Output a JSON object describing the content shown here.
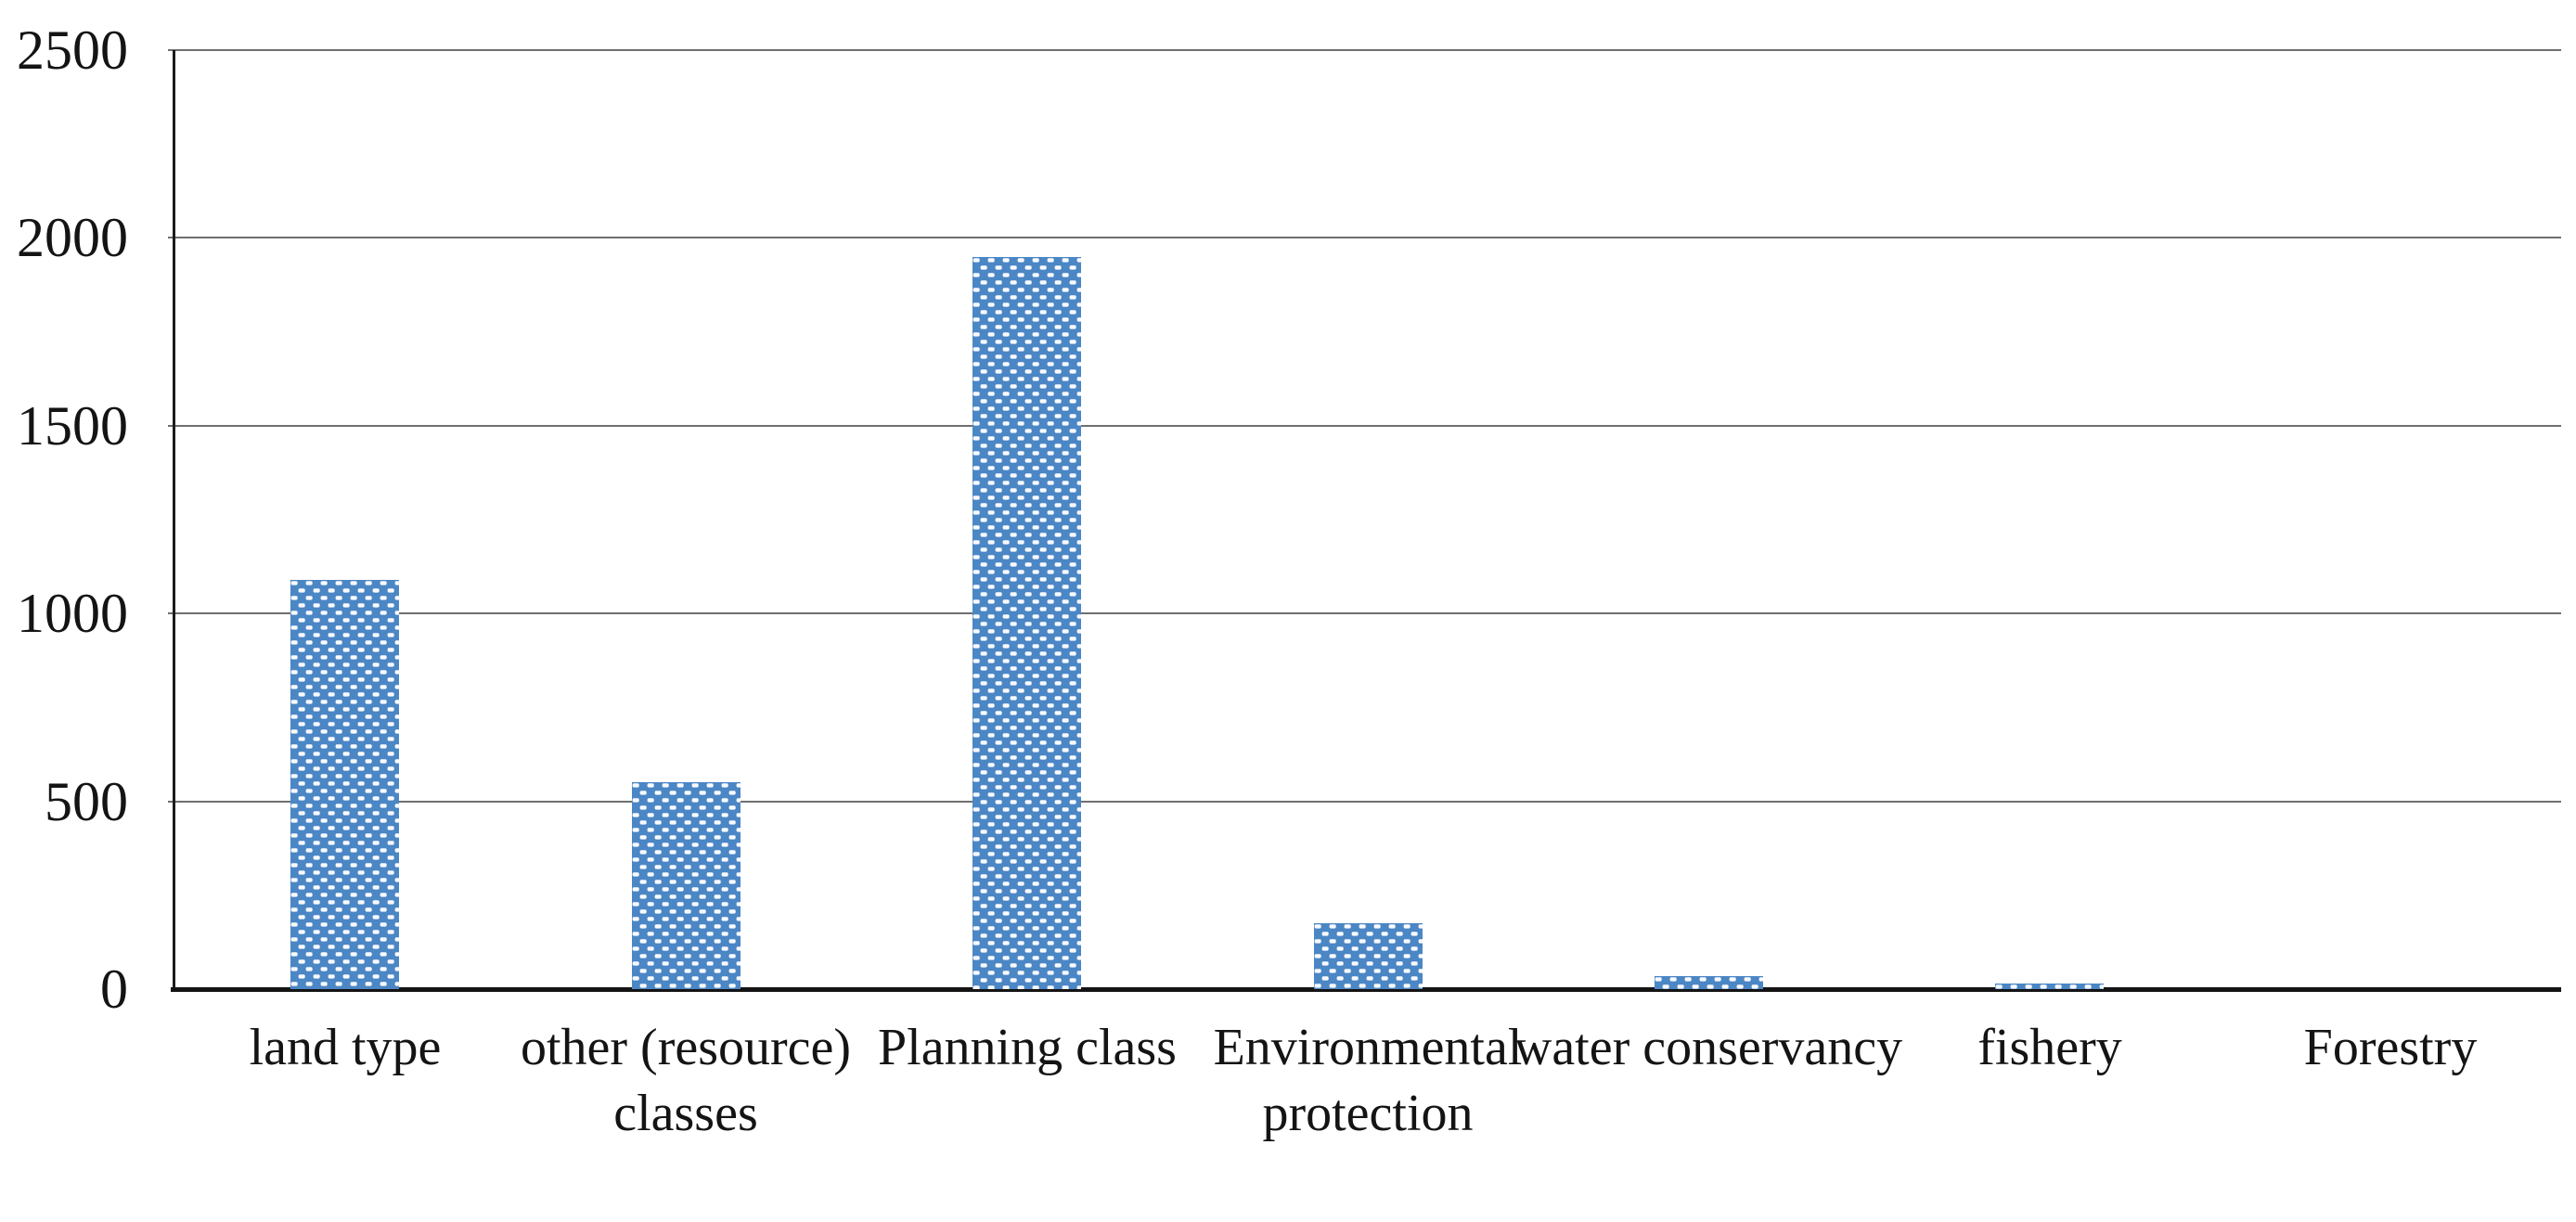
{
  "chart_data": {
    "type": "bar",
    "title": "",
    "xlabel": "",
    "ylabel": "",
    "categories": [
      "land type",
      "other (resource) classes",
      "Planning class",
      "Environmental protection",
      "water conservancy",
      "fishery",
      "Forestry"
    ],
    "values": [
      1090,
      550,
      1950,
      175,
      35,
      15,
      0
    ],
    "ytick_labels": [
      "0",
      "500",
      "1000",
      "1500",
      "2000",
      "2500"
    ],
    "yticks": [
      0,
      500,
      1000,
      1500,
      2000,
      2500
    ],
    "ylim": [
      0,
      2500
    ],
    "grid": "horizontal",
    "legend_position": "none",
    "bar_fill": {
      "base_color": "#4b86c5",
      "pattern": "woven-white-dashes",
      "pattern_color": "#ffffff"
    },
    "gridline_color": "#6f6f6f",
    "axis_color": "#1c1c1c",
    "text_color": "#141414"
  }
}
